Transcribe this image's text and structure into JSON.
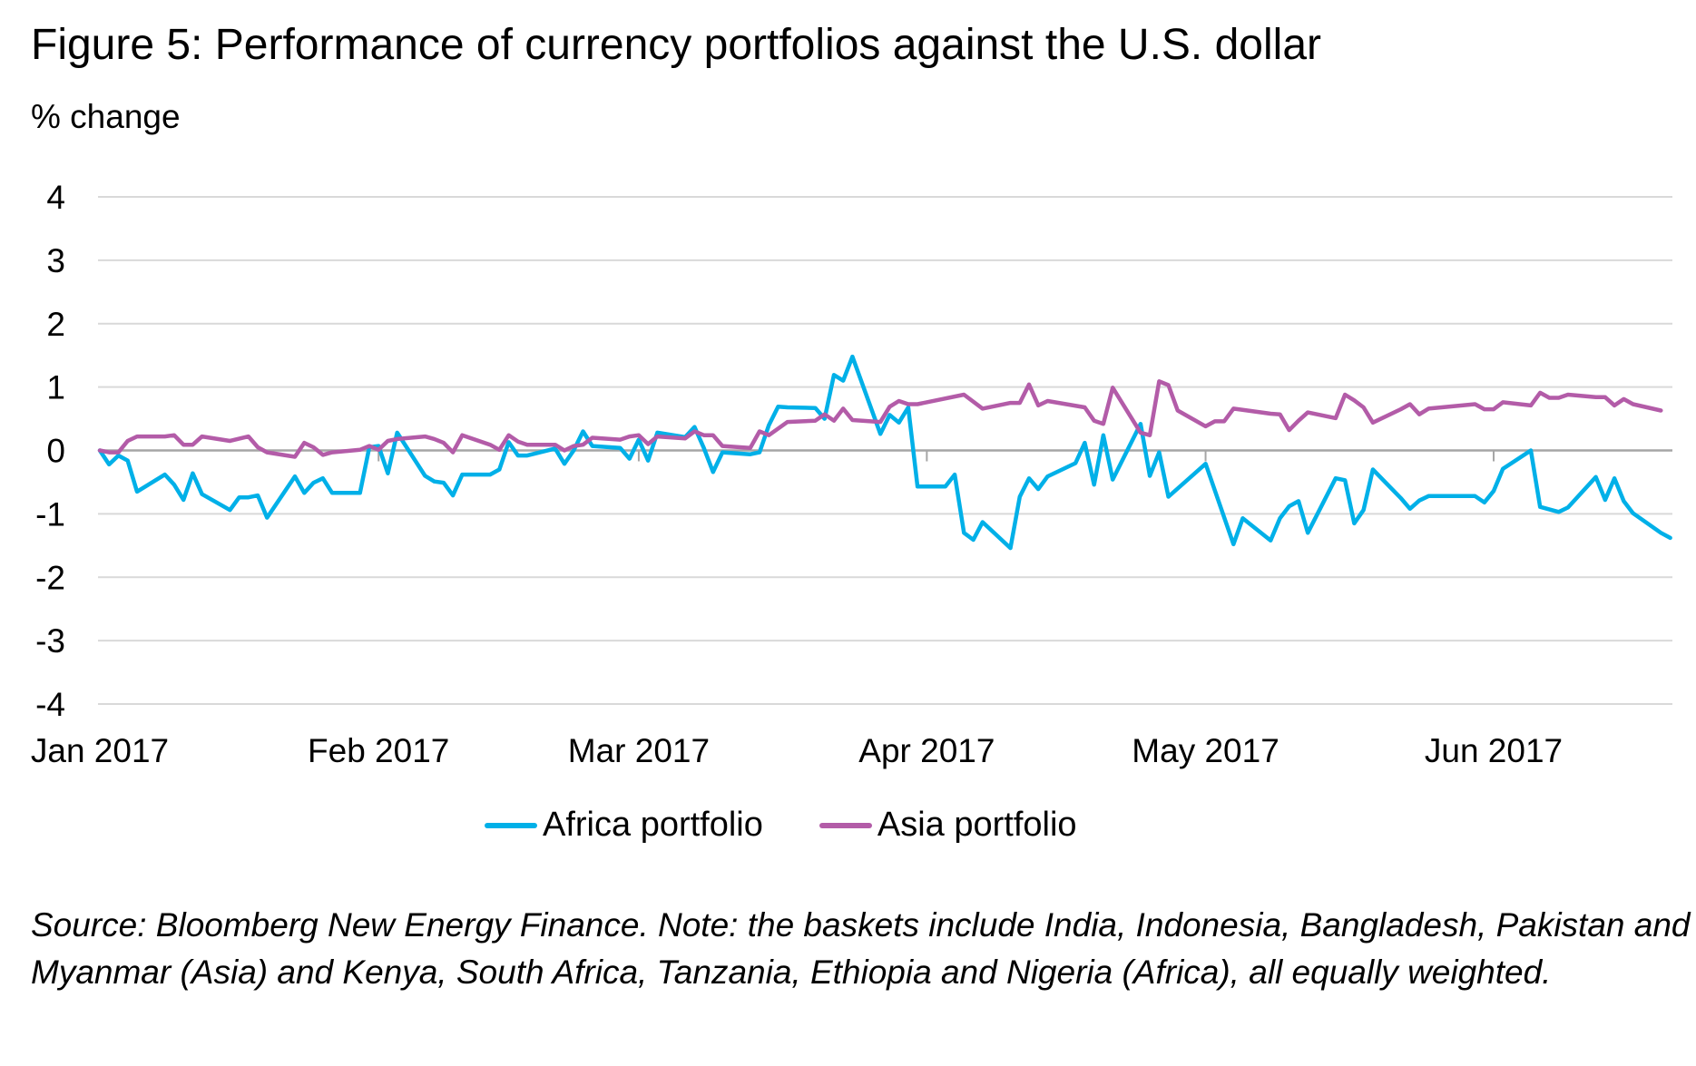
{
  "title": "Figure 5: Performance of currency portfolios against the U.S. dollar",
  "source": "Source: Bloomberg New Energy Finance. Note: the baskets include India, Indonesia, Bangladesh, Pakistan and Myanmar (Asia) and Kenya, South Africa, Tanzania, Ethiopia and Nigeria (Africa), all equally weighted.",
  "chart_data": {
    "type": "line",
    "title": "Figure 5: Performance of currency portfolios against the U.S. dollar",
    "ylabel": "% change",
    "xlabel": "",
    "ylim": [
      -4,
      4
    ],
    "yticks": [
      4,
      3,
      2,
      1,
      0,
      -1,
      -2,
      -3,
      -4
    ],
    "xlim": [
      "2017-01-02",
      "2017-06-20"
    ],
    "xticks": [
      {
        "date": "2017-01-02",
        "label": "Jan 2017"
      },
      {
        "date": "2017-02-01",
        "label": "Feb 2017"
      },
      {
        "date": "2017-03-01",
        "label": "Mar 2017"
      },
      {
        "date": "2017-04-01",
        "label": "Apr 2017"
      },
      {
        "date": "2017-05-01",
        "label": "May 2017"
      },
      {
        "date": "2017-06-01",
        "label": "Jun 2017"
      }
    ],
    "grid": true,
    "legend": "bottom",
    "series": [
      {
        "name": "Africa portfolio",
        "color": "#00b0e8",
        "points": [
          [
            "2017-01-02",
            0
          ],
          [
            "2017-01-03",
            -0.22
          ],
          [
            "2017-01-04",
            -0.08
          ],
          [
            "2017-01-05",
            -0.16
          ],
          [
            "2017-01-06",
            -0.65
          ],
          [
            "2017-01-09",
            -0.38
          ],
          [
            "2017-01-10",
            -0.54
          ],
          [
            "2017-01-11",
            -0.78
          ],
          [
            "2017-01-12",
            -0.36
          ],
          [
            "2017-01-13",
            -0.69
          ],
          [
            "2017-01-16",
            -0.94
          ],
          [
            "2017-01-17",
            -0.74
          ],
          [
            "2017-01-18",
            -0.74
          ],
          [
            "2017-01-19",
            -0.71
          ],
          [
            "2017-01-20",
            -1.06
          ],
          [
            "2017-01-23",
            -0.41
          ],
          [
            "2017-01-24",
            -0.67
          ],
          [
            "2017-01-25",
            -0.51
          ],
          [
            "2017-01-26",
            -0.44
          ],
          [
            "2017-01-27",
            -0.67
          ],
          [
            "2017-01-30",
            -0.67
          ],
          [
            "2017-01-31",
            0.05
          ],
          [
            "2017-02-01",
            0.07
          ],
          [
            "2017-02-02",
            -0.36
          ],
          [
            "2017-02-03",
            0.28
          ],
          [
            "2017-02-06",
            -0.4
          ],
          [
            "2017-02-07",
            -0.49
          ],
          [
            "2017-02-08",
            -0.51
          ],
          [
            "2017-02-09",
            -0.71
          ],
          [
            "2017-02-10",
            -0.38
          ],
          [
            "2017-02-13",
            -0.38
          ],
          [
            "2017-02-14",
            -0.3
          ],
          [
            "2017-02-15",
            0.13
          ],
          [
            "2017-02-16",
            -0.08
          ],
          [
            "2017-02-17",
            -0.08
          ],
          [
            "2017-02-20",
            0.03
          ],
          [
            "2017-02-21",
            -0.21
          ],
          [
            "2017-02-22",
            0
          ],
          [
            "2017-02-23",
            0.3
          ],
          [
            "2017-02-24",
            0.07
          ],
          [
            "2017-02-27",
            0.04
          ],
          [
            "2017-02-28",
            -0.13
          ],
          [
            "2017-03-01",
            0.17
          ],
          [
            "2017-03-02",
            -0.16
          ],
          [
            "2017-03-03",
            0.28
          ],
          [
            "2017-03-06",
            0.21
          ],
          [
            "2017-03-07",
            0.37
          ],
          [
            "2017-03-08",
            0.04
          ],
          [
            "2017-03-09",
            -0.34
          ],
          [
            "2017-03-10",
            -0.03
          ],
          [
            "2017-03-13",
            -0.06
          ],
          [
            "2017-03-14",
            -0.03
          ],
          [
            "2017-03-15",
            0.4
          ],
          [
            "2017-03-16",
            0.69
          ],
          [
            "2017-03-17",
            0.68
          ],
          [
            "2017-03-20",
            0.67
          ],
          [
            "2017-03-21",
            0.5
          ],
          [
            "2017-03-22",
            1.19
          ],
          [
            "2017-03-23",
            1.1
          ],
          [
            "2017-03-24",
            1.48
          ],
          [
            "2017-03-27",
            0.26
          ],
          [
            "2017-03-28",
            0.56
          ],
          [
            "2017-03-29",
            0.44
          ],
          [
            "2017-03-30",
            0.68
          ],
          [
            "2017-03-31",
            -0.57
          ],
          [
            "2017-04-03",
            -0.57
          ],
          [
            "2017-04-04",
            -0.38
          ],
          [
            "2017-04-05",
            -1.3
          ],
          [
            "2017-04-06",
            -1.41
          ],
          [
            "2017-04-07",
            -1.13
          ],
          [
            "2017-04-10",
            -1.54
          ],
          [
            "2017-04-11",
            -0.73
          ],
          [
            "2017-04-12",
            -0.44
          ],
          [
            "2017-04-13",
            -0.61
          ],
          [
            "2017-04-14",
            -0.41
          ],
          [
            "2017-04-17",
            -0.2
          ],
          [
            "2017-04-18",
            0.12
          ],
          [
            "2017-04-19",
            -0.54
          ],
          [
            "2017-04-20",
            0.24
          ],
          [
            "2017-04-21",
            -0.46
          ],
          [
            "2017-04-24",
            0.42
          ],
          [
            "2017-04-25",
            -0.4
          ],
          [
            "2017-04-26",
            -0.03
          ],
          [
            "2017-04-27",
            -0.73
          ],
          [
            "2017-05-01",
            -0.21
          ],
          [
            "2017-05-04",
            -1.48
          ],
          [
            "2017-05-05",
            -1.07
          ],
          [
            "2017-05-08",
            -1.42
          ],
          [
            "2017-05-09",
            -1.07
          ],
          [
            "2017-05-10",
            -0.88
          ],
          [
            "2017-05-11",
            -0.8
          ],
          [
            "2017-05-12",
            -1.3
          ],
          [
            "2017-05-15",
            -0.44
          ],
          [
            "2017-05-16",
            -0.47
          ],
          [
            "2017-05-17",
            -1.15
          ],
          [
            "2017-05-18",
            -0.94
          ],
          [
            "2017-05-19",
            -0.3
          ],
          [
            "2017-05-22",
            -0.75
          ],
          [
            "2017-05-23",
            -0.92
          ],
          [
            "2017-05-24",
            -0.79
          ],
          [
            "2017-05-25",
            -0.72
          ],
          [
            "2017-05-30",
            -0.72
          ],
          [
            "2017-05-31",
            -0.82
          ],
          [
            "2017-06-01",
            -0.64
          ],
          [
            "2017-06-02",
            -0.29
          ],
          [
            "2017-06-05",
            0
          ],
          [
            "2017-06-06",
            -0.89
          ],
          [
            "2017-06-08",
            -0.97
          ],
          [
            "2017-06-09",
            -0.9
          ],
          [
            "2017-06-12",
            -0.42
          ],
          [
            "2017-06-13",
            -0.78
          ],
          [
            "2017-06-14",
            -0.44
          ],
          [
            "2017-06-15",
            -0.8
          ],
          [
            "2017-06-16",
            -0.99
          ],
          [
            "2017-06-19",
            -1.3
          ],
          [
            "2017-06-20",
            -1.38
          ]
        ]
      },
      {
        "name": "Asia portfolio",
        "color": "#b35ca8",
        "points": [
          [
            "2017-01-02",
            0
          ],
          [
            "2017-01-03",
            -0.03
          ],
          [
            "2017-01-04",
            -0.03
          ],
          [
            "2017-01-05",
            0.15
          ],
          [
            "2017-01-06",
            0.22
          ],
          [
            "2017-01-09",
            0.22
          ],
          [
            "2017-01-10",
            0.24
          ],
          [
            "2017-01-11",
            0.09
          ],
          [
            "2017-01-12",
            0.09
          ],
          [
            "2017-01-13",
            0.22
          ],
          [
            "2017-01-16",
            0.15
          ],
          [
            "2017-01-18",
            0.22
          ],
          [
            "2017-01-19",
            0.05
          ],
          [
            "2017-01-20",
            -0.03
          ],
          [
            "2017-01-23",
            -0.1
          ],
          [
            "2017-01-24",
            0.12
          ],
          [
            "2017-01-25",
            0.05
          ],
          [
            "2017-01-26",
            -0.07
          ],
          [
            "2017-01-27",
            -0.03
          ],
          [
            "2017-01-30",
            0.01
          ],
          [
            "2017-01-31",
            0.07
          ],
          [
            "2017-02-01",
            0.01
          ],
          [
            "2017-02-02",
            0.15
          ],
          [
            "2017-02-03",
            0.18
          ],
          [
            "2017-02-06",
            0.22
          ],
          [
            "2017-02-07",
            0.18
          ],
          [
            "2017-02-08",
            0.12
          ],
          [
            "2017-02-09",
            -0.03
          ],
          [
            "2017-02-10",
            0.24
          ],
          [
            "2017-02-13",
            0.09
          ],
          [
            "2017-02-14",
            0.01
          ],
          [
            "2017-02-15",
            0.24
          ],
          [
            "2017-02-16",
            0.14
          ],
          [
            "2017-02-17",
            0.09
          ],
          [
            "2017-02-20",
            0.09
          ],
          [
            "2017-02-21",
            0
          ],
          [
            "2017-02-22",
            0.07
          ],
          [
            "2017-02-23",
            0.09
          ],
          [
            "2017-02-24",
            0.2
          ],
          [
            "2017-02-27",
            0.17
          ],
          [
            "2017-02-28",
            0.22
          ],
          [
            "2017-03-01",
            0.24
          ],
          [
            "2017-03-02",
            0.1
          ],
          [
            "2017-03-03",
            0.22
          ],
          [
            "2017-03-06",
            0.19
          ],
          [
            "2017-03-07",
            0.3
          ],
          [
            "2017-03-08",
            0.24
          ],
          [
            "2017-03-09",
            0.24
          ],
          [
            "2017-03-10",
            0.07
          ],
          [
            "2017-03-13",
            0.04
          ],
          [
            "2017-03-14",
            0.3
          ],
          [
            "2017-03-15",
            0.24
          ],
          [
            "2017-03-17",
            0.45
          ],
          [
            "2017-03-20",
            0.47
          ],
          [
            "2017-03-21",
            0.57
          ],
          [
            "2017-03-22",
            0.47
          ],
          [
            "2017-03-23",
            0.66
          ],
          [
            "2017-03-24",
            0.48
          ],
          [
            "2017-03-27",
            0.45
          ],
          [
            "2017-03-28",
            0.69
          ],
          [
            "2017-03-29",
            0.78
          ],
          [
            "2017-03-30",
            0.73
          ],
          [
            "2017-03-31",
            0.73
          ],
          [
            "2017-04-05",
            0.88
          ],
          [
            "2017-04-07",
            0.66
          ],
          [
            "2017-04-10",
            0.75
          ],
          [
            "2017-04-11",
            0.75
          ],
          [
            "2017-04-12",
            1.04
          ],
          [
            "2017-04-13",
            0.71
          ],
          [
            "2017-04-14",
            0.78
          ],
          [
            "2017-04-18",
            0.68
          ],
          [
            "2017-04-19",
            0.47
          ],
          [
            "2017-04-20",
            0.42
          ],
          [
            "2017-04-21",
            0.99
          ],
          [
            "2017-04-24",
            0.28
          ],
          [
            "2017-04-25",
            0.24
          ],
          [
            "2017-04-26",
            1.09
          ],
          [
            "2017-04-27",
            1.03
          ],
          [
            "2017-04-28",
            0.63
          ],
          [
            "2017-05-01",
            0.38
          ],
          [
            "2017-05-02",
            0.46
          ],
          [
            "2017-05-03",
            0.46
          ],
          [
            "2017-05-04",
            0.66
          ],
          [
            "2017-05-08",
            0.58
          ],
          [
            "2017-05-09",
            0.57
          ],
          [
            "2017-05-10",
            0.32
          ],
          [
            "2017-05-11",
            0.47
          ],
          [
            "2017-05-12",
            0.6
          ],
          [
            "2017-05-15",
            0.51
          ],
          [
            "2017-05-16",
            0.88
          ],
          [
            "2017-05-17",
            0.79
          ],
          [
            "2017-05-18",
            0.68
          ],
          [
            "2017-05-19",
            0.44
          ],
          [
            "2017-05-22",
            0.65
          ],
          [
            "2017-05-23",
            0.73
          ],
          [
            "2017-05-24",
            0.57
          ],
          [
            "2017-05-25",
            0.66
          ],
          [
            "2017-05-30",
            0.73
          ],
          [
            "2017-05-31",
            0.65
          ],
          [
            "2017-06-01",
            0.65
          ],
          [
            "2017-06-02",
            0.76
          ],
          [
            "2017-06-05",
            0.71
          ],
          [
            "2017-06-06",
            0.91
          ],
          [
            "2017-06-07",
            0.83
          ],
          [
            "2017-06-08",
            0.83
          ],
          [
            "2017-06-09",
            0.88
          ],
          [
            "2017-06-12",
            0.84
          ],
          [
            "2017-06-13",
            0.84
          ],
          [
            "2017-06-14",
            0.71
          ],
          [
            "2017-06-15",
            0.81
          ],
          [
            "2017-06-16",
            0.73
          ],
          [
            "2017-06-19",
            0.63
          ]
        ]
      }
    ]
  }
}
